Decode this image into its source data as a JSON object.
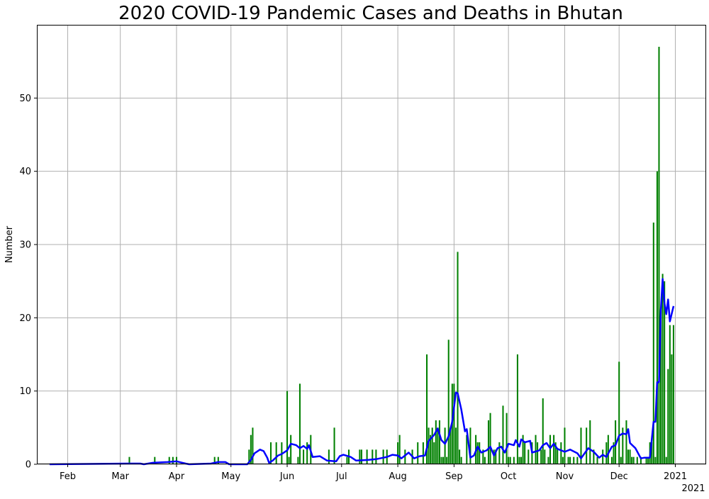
{
  "chart_data": {
    "type": "bar",
    "title": "2020 COVID-19 Pandemic Cases and Deaths in Bhutan",
    "xlabel": "",
    "ylabel": "Number",
    "x_is_date": true,
    "xlim": [
      "2020-01-15",
      "2021-01-18"
    ],
    "ylim": [
      0,
      60
    ],
    "yticks": [
      0,
      10,
      20,
      30,
      40,
      50
    ],
    "xticks": [
      {
        "date": "2020-02-01",
        "label": "Feb"
      },
      {
        "date": "2020-03-01",
        "label": "Mar"
      },
      {
        "date": "2020-04-01",
        "label": "Apr"
      },
      {
        "date": "2020-05-01",
        "label": "May"
      },
      {
        "date": "2020-06-01",
        "label": "Jun"
      },
      {
        "date": "2020-07-01",
        "label": "Jul"
      },
      {
        "date": "2020-08-01",
        "label": "Aug"
      },
      {
        "date": "2020-09-01",
        "label": "Sep"
      },
      {
        "date": "2020-10-01",
        "label": "Oct"
      },
      {
        "date": "2020-11-01",
        "label": "Nov"
      },
      {
        "date": "2020-12-01",
        "label": "Dec"
      },
      {
        "date": "2021-01-01",
        "label": "2021"
      }
    ],
    "offset_label": "2021",
    "grid": true,
    "series": [
      {
        "kind": "bar",
        "color": "#008000",
        "points": [
          [
            "2020-03-06",
            1
          ],
          [
            "2020-03-20",
            1
          ],
          [
            "2020-03-28",
            1
          ],
          [
            "2020-03-30",
            1
          ],
          [
            "2020-04-01",
            1
          ],
          [
            "2020-04-22",
            1
          ],
          [
            "2020-04-24",
            1
          ],
          [
            "2020-05-11",
            2
          ],
          [
            "2020-05-12",
            4
          ],
          [
            "2020-05-13",
            5
          ],
          [
            "2020-05-23",
            3
          ],
          [
            "2020-05-26",
            3
          ],
          [
            "2020-05-29",
            3
          ],
          [
            "2020-06-01",
            10
          ],
          [
            "2020-06-02",
            1
          ],
          [
            "2020-06-03",
            4
          ],
          [
            "2020-06-07",
            1
          ],
          [
            "2020-06-08",
            11
          ],
          [
            "2020-06-10",
            2
          ],
          [
            "2020-06-12",
            3
          ],
          [
            "2020-06-14",
            4
          ],
          [
            "2020-06-24",
            2
          ],
          [
            "2020-06-27",
            5
          ],
          [
            "2020-07-04",
            1
          ],
          [
            "2020-07-05",
            2
          ],
          [
            "2020-07-11",
            2
          ],
          [
            "2020-07-12",
            2
          ],
          [
            "2020-07-15",
            2
          ],
          [
            "2020-07-18",
            2
          ],
          [
            "2020-07-20",
            2
          ],
          [
            "2020-07-24",
            2
          ],
          [
            "2020-07-26",
            2
          ],
          [
            "2020-08-01",
            3
          ],
          [
            "2020-08-02",
            4
          ],
          [
            "2020-08-05",
            2
          ],
          [
            "2020-08-09",
            2
          ],
          [
            "2020-08-12",
            3
          ],
          [
            "2020-08-15",
            3
          ],
          [
            "2020-08-17",
            15
          ],
          [
            "2020-08-18",
            5
          ],
          [
            "2020-08-19",
            4
          ],
          [
            "2020-08-20",
            5
          ],
          [
            "2020-08-21",
            3
          ],
          [
            "2020-08-22",
            6
          ],
          [
            "2020-08-23",
            5
          ],
          [
            "2020-08-24",
            6
          ],
          [
            "2020-08-25",
            1
          ],
          [
            "2020-08-26",
            1
          ],
          [
            "2020-08-27",
            5
          ],
          [
            "2020-08-28",
            1
          ],
          [
            "2020-08-29",
            17
          ],
          [
            "2020-08-30",
            5
          ],
          [
            "2020-08-31",
            11
          ],
          [
            "2020-09-01",
            11
          ],
          [
            "2020-09-02",
            5
          ],
          [
            "2020-09-03",
            29
          ],
          [
            "2020-09-04",
            2
          ],
          [
            "2020-09-05",
            1
          ],
          [
            "2020-09-08",
            4
          ],
          [
            "2020-09-10",
            5
          ],
          [
            "2020-09-13",
            4
          ],
          [
            "2020-09-14",
            3
          ],
          [
            "2020-09-15",
            3
          ],
          [
            "2020-09-17",
            2
          ],
          [
            "2020-09-18",
            1
          ],
          [
            "2020-09-20",
            6
          ],
          [
            "2020-09-21",
            7
          ],
          [
            "2020-09-23",
            2
          ],
          [
            "2020-09-24",
            2
          ],
          [
            "2020-09-26",
            3
          ],
          [
            "2020-09-28",
            8
          ],
          [
            "2020-09-30",
            7
          ],
          [
            "2020-10-01",
            1
          ],
          [
            "2020-10-02",
            1
          ],
          [
            "2020-10-04",
            1
          ],
          [
            "2020-10-06",
            15
          ],
          [
            "2020-10-07",
            1
          ],
          [
            "2020-10-08",
            1
          ],
          [
            "2020-10-09",
            4
          ],
          [
            "2020-10-10",
            3
          ],
          [
            "2020-10-12",
            2
          ],
          [
            "2020-10-14",
            3
          ],
          [
            "2020-10-16",
            4
          ],
          [
            "2020-10-17",
            3
          ],
          [
            "2020-10-19",
            2
          ],
          [
            "2020-10-20",
            9
          ],
          [
            "2020-10-21",
            2
          ],
          [
            "2020-10-23",
            1
          ],
          [
            "2020-10-24",
            4
          ],
          [
            "2020-10-26",
            4
          ],
          [
            "2020-10-27",
            3
          ],
          [
            "2020-10-28",
            2
          ],
          [
            "2020-10-30",
            3
          ],
          [
            "2020-10-31",
            1
          ],
          [
            "2020-11-01",
            5
          ],
          [
            "2020-11-03",
            1
          ],
          [
            "2020-11-04",
            1
          ],
          [
            "2020-11-06",
            1
          ],
          [
            "2020-11-08",
            1
          ],
          [
            "2020-11-10",
            5
          ],
          [
            "2020-11-13",
            5
          ],
          [
            "2020-11-15",
            6
          ],
          [
            "2020-11-17",
            2
          ],
          [
            "2020-11-19",
            1
          ],
          [
            "2020-11-22",
            2
          ],
          [
            "2020-11-24",
            3
          ],
          [
            "2020-11-25",
            4
          ],
          [
            "2020-11-27",
            1
          ],
          [
            "2020-11-28",
            3
          ],
          [
            "2020-11-29",
            6
          ],
          [
            "2020-12-01",
            14
          ],
          [
            "2020-12-02",
            1
          ],
          [
            "2020-12-03",
            5
          ],
          [
            "2020-12-05",
            6
          ],
          [
            "2020-12-06",
            2
          ],
          [
            "2020-12-07",
            2
          ],
          [
            "2020-12-08",
            1
          ],
          [
            "2020-12-09",
            1
          ],
          [
            "2020-12-11",
            1
          ],
          [
            "2020-12-13",
            1
          ],
          [
            "2020-12-16",
            1
          ],
          [
            "2020-12-17",
            1
          ],
          [
            "2020-12-18",
            3
          ],
          [
            "2020-12-19",
            3
          ],
          [
            "2020-12-20",
            33
          ],
          [
            "2020-12-21",
            1
          ],
          [
            "2020-12-22",
            40
          ],
          [
            "2020-12-23",
            57
          ],
          [
            "2020-12-24",
            21
          ],
          [
            "2020-12-25",
            26
          ],
          [
            "2020-12-26",
            25
          ],
          [
            "2020-12-27",
            1
          ],
          [
            "2020-12-28",
            13
          ],
          [
            "2020-12-29",
            19
          ],
          [
            "2020-12-30",
            15
          ],
          [
            "2020-12-31",
            19
          ]
        ]
      },
      {
        "kind": "line",
        "color": "#0000ff",
        "points": [
          [
            "2020-01-22",
            0
          ],
          [
            "2020-03-05",
            0.1
          ],
          [
            "2020-03-12",
            0.1
          ],
          [
            "2020-03-14",
            0
          ],
          [
            "2020-03-19",
            0.2
          ],
          [
            "2020-03-27",
            0.3
          ],
          [
            "2020-04-01",
            0.4
          ],
          [
            "2020-04-06",
            0.1
          ],
          [
            "2020-04-08",
            0
          ],
          [
            "2020-04-20",
            0.1
          ],
          [
            "2020-04-24",
            0.3
          ],
          [
            "2020-04-28",
            0.3
          ],
          [
            "2020-04-30",
            0
          ],
          [
            "2020-05-10",
            0
          ],
          [
            "2020-05-12",
            0.6
          ],
          [
            "2020-05-14",
            1.5
          ],
          [
            "2020-05-17",
            2
          ],
          [
            "2020-05-19",
            1.8
          ],
          [
            "2020-05-21",
            0.9
          ],
          [
            "2020-05-22",
            0.2
          ],
          [
            "2020-05-24",
            0.5
          ],
          [
            "2020-05-27",
            1.2
          ],
          [
            "2020-05-29",
            1.4
          ],
          [
            "2020-06-01",
            1.9
          ],
          [
            "2020-06-03",
            2.8
          ],
          [
            "2020-06-06",
            2.6
          ],
          [
            "2020-06-08",
            2.2
          ],
          [
            "2020-06-10",
            2.5
          ],
          [
            "2020-06-12",
            2.1
          ],
          [
            "2020-06-13",
            2.6
          ],
          [
            "2020-06-15",
            1.0
          ],
          [
            "2020-06-19",
            1.1
          ],
          [
            "2020-06-23",
            0.5
          ],
          [
            "2020-06-28",
            0.4
          ],
          [
            "2020-06-30",
            1.1
          ],
          [
            "2020-07-02",
            1.3
          ],
          [
            "2020-07-06",
            1.0
          ],
          [
            "2020-07-09",
            0.5
          ],
          [
            "2020-07-16",
            0.6
          ],
          [
            "2020-07-20",
            0.7
          ],
          [
            "2020-07-26",
            1.0
          ],
          [
            "2020-07-29",
            1.3
          ],
          [
            "2020-08-01",
            1.2
          ],
          [
            "2020-08-03",
            0.8
          ],
          [
            "2020-08-07",
            1.6
          ],
          [
            "2020-08-10",
            0.8
          ],
          [
            "2020-08-13",
            1.1
          ],
          [
            "2020-08-16",
            1.2
          ],
          [
            "2020-08-18",
            3.2
          ],
          [
            "2020-08-21",
            4.0
          ],
          [
            "2020-08-23",
            4.9
          ],
          [
            "2020-08-25",
            3.3
          ],
          [
            "2020-08-27",
            2.8
          ],
          [
            "2020-08-29",
            3.8
          ],
          [
            "2020-08-31",
            5.8
          ],
          [
            "2020-09-02",
            9.8
          ],
          [
            "2020-09-03",
            9.7
          ],
          [
            "2020-09-05",
            7.5
          ],
          [
            "2020-09-07",
            4.5
          ],
          [
            "2020-09-08",
            4.8
          ],
          [
            "2020-09-10",
            0.9
          ],
          [
            "2020-09-12",
            1.2
          ],
          [
            "2020-09-14",
            2.4
          ],
          [
            "2020-09-16",
            1.6
          ],
          [
            "2020-09-19",
            1.9
          ],
          [
            "2020-09-21",
            2.4
          ],
          [
            "2020-09-23",
            1.2
          ],
          [
            "2020-09-25",
            2.2
          ],
          [
            "2020-09-27",
            2.4
          ],
          [
            "2020-09-29",
            1.6
          ],
          [
            "2020-10-01",
            2.8
          ],
          [
            "2020-10-04",
            2.6
          ],
          [
            "2020-10-05",
            3.3
          ],
          [
            "2020-10-07",
            2.4
          ],
          [
            "2020-10-08",
            3.4
          ],
          [
            "2020-10-10",
            3.0
          ],
          [
            "2020-10-13",
            3.2
          ],
          [
            "2020-10-14",
            1.6
          ],
          [
            "2020-10-18",
            1.9
          ],
          [
            "2020-10-20",
            2.6
          ],
          [
            "2020-10-22",
            2.9
          ],
          [
            "2020-10-24",
            2.2
          ],
          [
            "2020-10-26",
            2.8
          ],
          [
            "2020-10-28",
            2.1
          ],
          [
            "2020-11-01",
            1.7
          ],
          [
            "2020-11-04",
            2.0
          ],
          [
            "2020-11-08",
            1.5
          ],
          [
            "2020-11-10",
            0.8
          ],
          [
            "2020-11-14",
            2.2
          ],
          [
            "2020-11-17",
            1.7
          ],
          [
            "2020-11-20",
            0.9
          ],
          [
            "2020-11-22",
            1.3
          ],
          [
            "2020-11-24",
            1.0
          ],
          [
            "2020-11-27",
            2.4
          ],
          [
            "2020-11-29",
            2.6
          ],
          [
            "2020-12-01",
            3.9
          ],
          [
            "2020-12-03",
            4.2
          ],
          [
            "2020-12-05",
            4.1
          ],
          [
            "2020-12-06",
            4.8
          ],
          [
            "2020-12-07",
            2.9
          ],
          [
            "2020-12-10",
            2.2
          ],
          [
            "2020-12-13",
            0.8
          ],
          [
            "2020-12-15",
            0.9
          ],
          [
            "2020-12-18",
            0.9
          ],
          [
            "2020-12-20",
            5.8
          ],
          [
            "2020-12-21",
            5.8
          ],
          [
            "2020-12-22",
            11.2
          ],
          [
            "2020-12-23",
            11.2
          ],
          [
            "2020-12-24",
            21
          ],
          [
            "2020-12-25",
            25.3
          ],
          [
            "2020-12-26",
            22
          ],
          [
            "2020-12-27",
            20.5
          ],
          [
            "2020-12-28",
            22.5
          ],
          [
            "2020-12-29",
            19.5
          ],
          [
            "2020-12-31",
            21.6
          ]
        ]
      }
    ]
  }
}
